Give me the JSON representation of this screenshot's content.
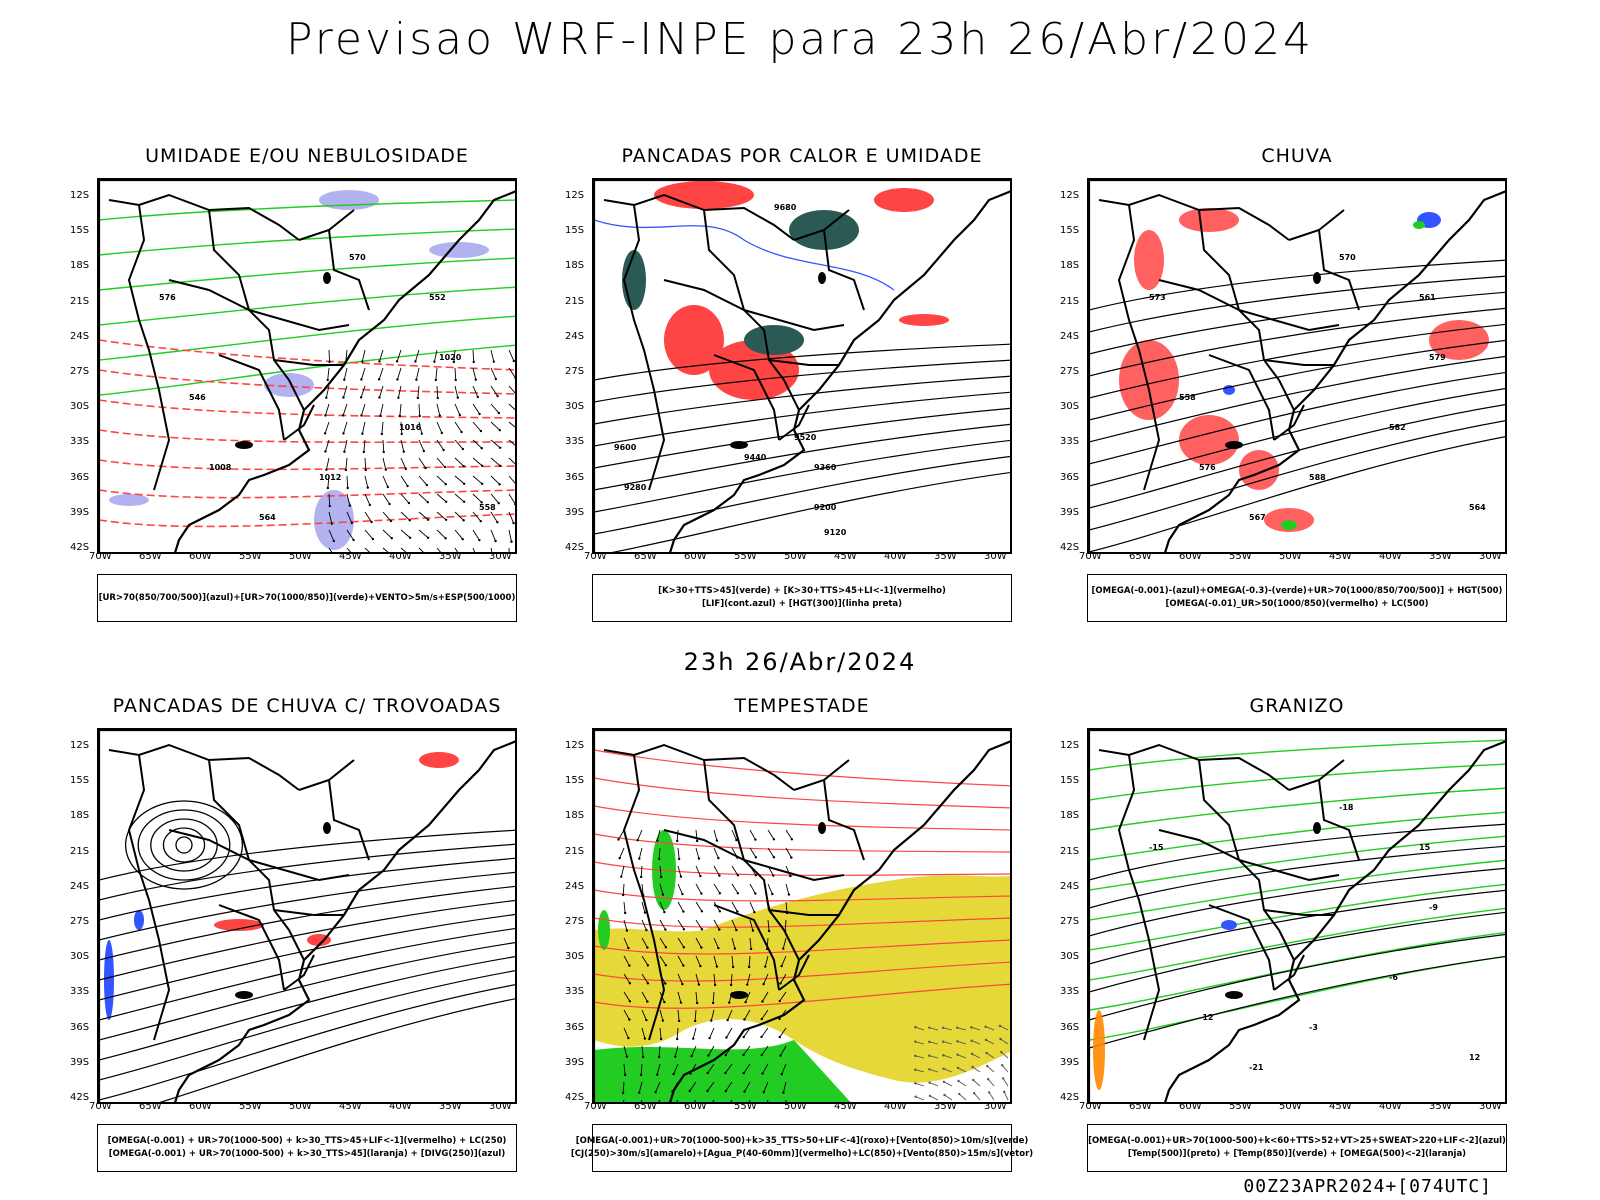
{
  "header": {
    "title": "Previsao WRF-INPE  para 23h 26/Abr/2024"
  },
  "mid": {
    "title": "23h 26/Abr/2024"
  },
  "footer": {
    "run": "00Z23APR2024+[074UTC]"
  },
  "axes": {
    "lat_labels": [
      "12S",
      "15S",
      "18S",
      "21S",
      "24S",
      "27S",
      "30S",
      "33S",
      "36S",
      "39S",
      "42S"
    ],
    "lon_labels": [
      "70W",
      "65W",
      "60W",
      "55W",
      "50W",
      "45W",
      "40W",
      "35W",
      "30W"
    ]
  },
  "panels": [
    {
      "id": "umidade",
      "title": "UMIDADE E/OU NEBULOSIDADE",
      "legend": [
        "[UR>70(850/700/500)](azul)+[UR>70(1000/850)](verde)+VENTO>5m/s+ESP(500/1000)"
      ],
      "labels": [
        "1012",
        "1016",
        "1020",
        "1008",
        "576",
        "570",
        "564",
        "558",
        "552",
        "546"
      ]
    },
    {
      "id": "pancadas-calor",
      "title": "PANCADAS POR CALOR E UMIDADE",
      "legend": [
        "[K>30+TTS>45](verde) + [K>30+TTS>45+LI<-1](vermelho)",
        "[LIF](cont.azul) + [HGT(300)](linha preta)"
      ],
      "labels": [
        "9680",
        "9600",
        "9520",
        "9440",
        "9360",
        "9280",
        "9200",
        "9120"
      ]
    },
    {
      "id": "chuva",
      "title": "CHUVA",
      "legend": [
        "[OMEGA(-0.001)-(azul)+OMEGA(-0.3)-(verde)+UR>70(1000/850/700/500)] + HGT(500)",
        "[OMEGA(-0.01)_UR>50(1000/850)(vermelho) + LC(500)"
      ],
      "labels": [
        "588",
        "582",
        "579",
        "576",
        "573",
        "570",
        "567",
        "564",
        "561",
        "558"
      ]
    },
    {
      "id": "trovoadas",
      "title": "PANCADAS DE CHUVA C/ TROVOADAS",
      "legend": [
        "[OMEGA(-0.001) + UR>70(1000-500) + k>30_TTS>45+LIF<-1](vermelho) + LC(250)",
        "[OMEGA(-0.001) + UR>70(1000-500) + k>30_TTS>45](laranja) + [DIVG(250)](azul)"
      ],
      "labels": []
    },
    {
      "id": "tempestade",
      "title": "TEMPESTADE",
      "legend": [
        "[OMEGA(-0.001)+UR>70(1000-500)+k>35_TTS>50+LIF<-4](roxo)+[Vento(850)>10m/s](verde)",
        "[CJ(250)>30m/s](amarelo)+[Agua_P(40-60mm)](vermelho)+LC(850)+[Vento(850)>15m/s](vetor)"
      ],
      "labels": []
    },
    {
      "id": "granizo",
      "title": "GRANIZO",
      "legend": [
        "[OMEGA(-0.001)+UR>70(1000-500)+k<60+TTS>52+VT>25+SWEAT>220+LIF<-2](azul)",
        "[Temp(500)](preto) + [Temp(850)](verde) + [OMEGA(500)<-2](laranja)"
      ],
      "labels": [
        "-3",
        "-6",
        "-9",
        "-12",
        "-15",
        "-18",
        "-21",
        "12",
        "15"
      ]
    }
  ],
  "colors": {
    "green": "#22cc22",
    "red": "#ff4444",
    "blue": "#3355ff",
    "lavender": "#aaaaee",
    "darkteal": "#2b5a55",
    "yellow": "#e5d838",
    "orange": "#ff8800",
    "purple": "#aa00cc"
  }
}
